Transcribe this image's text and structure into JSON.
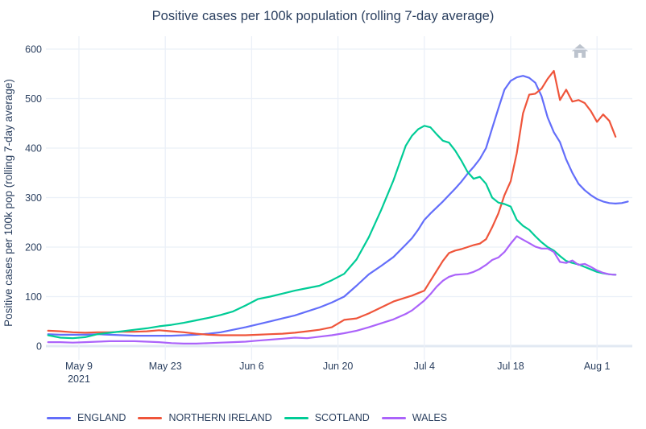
{
  "chart_data": {
    "type": "line",
    "title": "Positive cases per 100k population (rolling 7-day average)",
    "ylabel": "Positive cases per 100k pop (rolling 7-day average)",
    "grid": true,
    "legend_position": "bottom",
    "x_axis": {
      "unit": "days since May 4 2021",
      "ticks": [
        {
          "day": 5,
          "label": "May 9",
          "sublabel": "2021"
        },
        {
          "day": 19,
          "label": "May 23"
        },
        {
          "day": 33,
          "label": "Jun 6"
        },
        {
          "day": 47,
          "label": "Jun 20"
        },
        {
          "day": 61,
          "label": "Jul 4"
        },
        {
          "day": 75,
          "label": "Jul 18"
        },
        {
          "day": 89,
          "label": "Aug 1"
        }
      ]
    },
    "y_axis": {
      "ticks": [
        0,
        100,
        200,
        300,
        400,
        500,
        600
      ],
      "range": [
        -26,
        626
      ]
    },
    "series": [
      {
        "name": "ENGLAND",
        "color": "#636efa",
        "x": [
          0,
          2,
          4,
          6,
          8,
          10,
          12,
          14,
          16,
          18,
          20,
          22,
          24,
          26,
          28,
          30,
          32,
          34,
          36,
          38,
          40,
          42,
          44,
          46,
          48,
          50,
          52,
          54,
          56,
          58,
          59,
          60,
          61,
          62,
          63,
          64,
          65,
          66,
          67,
          68,
          69,
          70,
          71,
          72,
          73,
          74,
          75,
          76,
          77,
          78,
          79,
          80,
          81,
          82,
          83,
          84,
          85,
          86,
          87,
          88,
          89,
          90,
          91,
          92,
          93,
          94
        ],
        "values": [
          24,
          23,
          23,
          23,
          24,
          23,
          22,
          21,
          21,
          21,
          21,
          22,
          23,
          25,
          28,
          33,
          38,
          44,
          50,
          56,
          62,
          70,
          78,
          88,
          100,
          122,
          145,
          162,
          180,
          205,
          218,
          235,
          255,
          268,
          280,
          292,
          305,
          318,
          332,
          348,
          362,
          378,
          400,
          440,
          480,
          518,
          536,
          543,
          546,
          542,
          532,
          505,
          462,
          432,
          412,
          377,
          350,
          328,
          315,
          305,
          297,
          292,
          289,
          288,
          289,
          292
        ]
      },
      {
        "name": "NORTHERN IRELAND",
        "color": "#ef553b",
        "x": [
          0,
          2,
          4,
          6,
          8,
          10,
          12,
          14,
          16,
          18,
          20,
          22,
          24,
          26,
          28,
          30,
          32,
          34,
          36,
          38,
          40,
          42,
          44,
          46,
          48,
          50,
          52,
          54,
          56,
          58,
          59,
          60,
          61,
          62,
          63,
          64,
          65,
          66,
          67,
          68,
          69,
          70,
          71,
          72,
          73,
          74,
          75,
          76,
          77,
          78,
          79,
          80,
          81,
          82,
          83,
          84,
          85,
          86,
          87,
          88,
          89,
          90,
          91,
          92
        ],
        "values": [
          31,
          30,
          28,
          27,
          28,
          28,
          29,
          29,
          30,
          32,
          30,
          28,
          25,
          23,
          22,
          22,
          22,
          23,
          24,
          25,
          27,
          30,
          33,
          38,
          53,
          56,
          66,
          78,
          90,
          98,
          102,
          107,
          112,
          132,
          152,
          172,
          188,
          193,
          196,
          200,
          204,
          207,
          216,
          240,
          268,
          305,
          333,
          390,
          470,
          508,
          510,
          520,
          540,
          556,
          497,
          518,
          494,
          497,
          491,
          475,
          453,
          468,
          455,
          423
        ]
      },
      {
        "name": "SCOTLAND",
        "color": "#00cc96",
        "x": [
          0,
          2,
          4,
          6,
          8,
          10,
          12,
          14,
          16,
          18,
          20,
          22,
          24,
          26,
          28,
          30,
          32,
          34,
          36,
          38,
          40,
          42,
          44,
          46,
          48,
          50,
          52,
          54,
          56,
          58,
          59,
          60,
          61,
          62,
          63,
          64,
          65,
          66,
          67,
          68,
          69,
          70,
          71,
          72,
          73,
          74,
          75,
          76,
          77,
          78,
          79,
          80,
          81,
          82,
          83,
          84,
          85,
          86,
          87,
          88,
          89,
          90,
          91,
          92
        ],
        "values": [
          22,
          17,
          16,
          18,
          24,
          27,
          30,
          33,
          36,
          40,
          43,
          47,
          52,
          57,
          63,
          70,
          82,
          95,
          100,
          106,
          112,
          117,
          122,
          133,
          146,
          175,
          220,
          275,
          335,
          405,
          425,
          438,
          445,
          442,
          428,
          415,
          411,
          395,
          375,
          352,
          338,
          342,
          328,
          300,
          290,
          287,
          282,
          255,
          243,
          235,
          222,
          210,
          200,
          193,
          182,
          172,
          168,
          165,
          160,
          155,
          150,
          147,
          145,
          144
        ]
      },
      {
        "name": "WALES",
        "color": "#ab63fa",
        "x": [
          0,
          2,
          4,
          6,
          8,
          10,
          12,
          14,
          16,
          18,
          20,
          22,
          24,
          26,
          28,
          30,
          32,
          34,
          36,
          38,
          40,
          42,
          44,
          46,
          48,
          50,
          52,
          54,
          56,
          58,
          59,
          60,
          61,
          62,
          63,
          64,
          65,
          66,
          67,
          68,
          69,
          70,
          71,
          72,
          73,
          74,
          75,
          76,
          77,
          78,
          79,
          80,
          81,
          82,
          83,
          84,
          85,
          86,
          87,
          88,
          89,
          90,
          91,
          92
        ],
        "values": [
          8,
          8,
          7,
          8,
          9,
          10,
          10,
          10,
          9,
          8,
          6,
          5,
          5,
          6,
          7,
          8,
          9,
          11,
          13,
          15,
          17,
          16,
          19,
          22,
          26,
          31,
          38,
          46,
          54,
          65,
          72,
          82,
          92,
          105,
          120,
          132,
          140,
          144,
          145,
          146,
          150,
          156,
          164,
          174,
          179,
          190,
          207,
          222,
          215,
          208,
          201,
          197,
          197,
          190,
          170,
          168,
          173,
          164,
          166,
          160,
          153,
          148,
          145,
          144
        ]
      }
    ]
  },
  "toolbar": {
    "icons": {
      "reset_view": "home"
    },
    "home_icon_color": "#bcc3cd"
  },
  "style_colors": {
    "text": "#2a3f5f",
    "gridline": "#ebf0f8",
    "zeroline": "#e2e9f3",
    "background": "#ffffff"
  }
}
